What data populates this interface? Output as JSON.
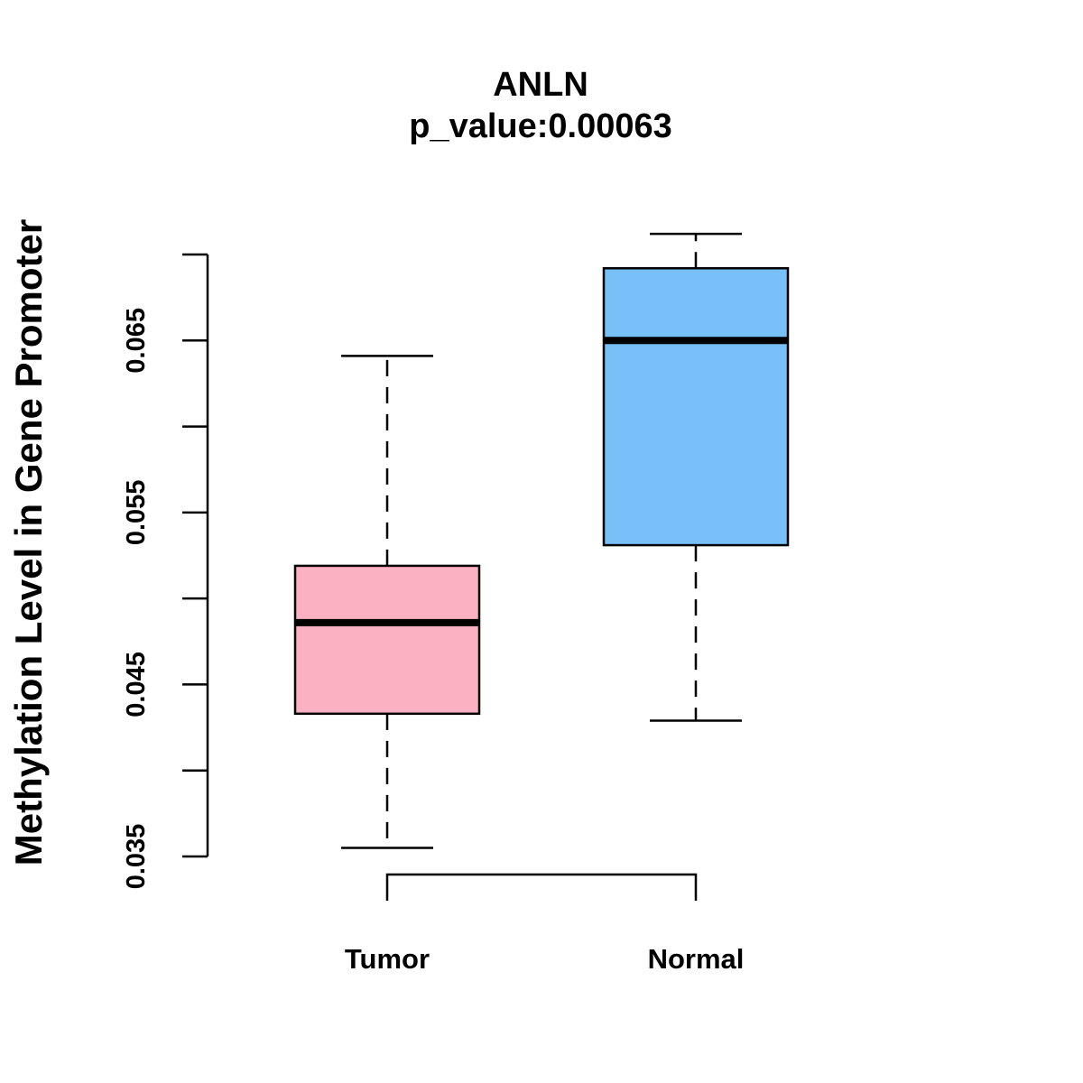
{
  "chart_data": {
    "type": "box",
    "title": "ANLN",
    "subtitle": "p_value:0.00063",
    "xlabel": "",
    "ylabel": "Methylation Level in Gene Promoter",
    "ylim": [
      0.035,
      0.07
    ],
    "y_ticks": [
      0.035,
      0.04,
      0.045,
      0.05,
      0.055,
      0.06,
      0.065,
      0.07
    ],
    "y_tick_labels": [
      "0.035",
      "0.045",
      "0.055",
      "0.065"
    ],
    "y_tick_label_values": [
      0.035,
      0.045,
      0.055,
      0.065
    ],
    "categories": [
      "Tumor",
      "Normal"
    ],
    "boxes": [
      {
        "name": "Tumor",
        "color": "#FBB1C2",
        "whisker_low": 0.0355,
        "q1": 0.0433,
        "median": 0.0486,
        "q3": 0.0519,
        "whisker_high": 0.0641
      },
      {
        "name": "Normal",
        "color": "#77C1F8",
        "whisker_low": 0.0429,
        "q1": 0.0531,
        "median": 0.065,
        "q3": 0.0692,
        "whisker_high": 0.0712
      }
    ],
    "grid": false,
    "comparison_bracket": [
      "Tumor",
      "Normal"
    ]
  },
  "colors": {
    "text": "#000000",
    "background": "#ffffff"
  }
}
